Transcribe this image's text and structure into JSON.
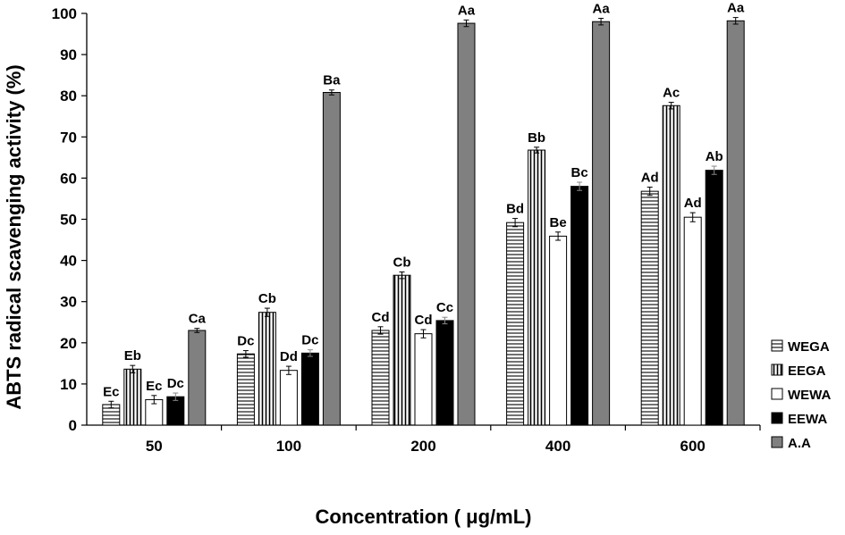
{
  "chart_data": {
    "type": "bar",
    "xlabel": "Concentration ( μg/mL)",
    "ylabel": "ABTS radical scavenging activity (%)",
    "ylim": [
      0,
      100
    ],
    "yticks": [
      0,
      10,
      20,
      30,
      40,
      50,
      60,
      70,
      80,
      90,
      100
    ],
    "categories": [
      "50",
      "100",
      "200",
      "400",
      "600"
    ],
    "legend_position": "right-bottom",
    "series": [
      {
        "name": "WEGA",
        "pattern": "horizontal-stripes",
        "color": "#000000",
        "values": [
          5.0,
          17.3,
          23.0,
          49.2,
          56.8
        ],
        "errors": [
          0.8,
          0.8,
          0.9,
          1.0,
          1.0
        ],
        "labels": [
          "Ec",
          "Dc",
          "Cd",
          "Bd",
          "Ad"
        ]
      },
      {
        "name": "EEGA",
        "pattern": "vertical-stripes",
        "color": "#000000",
        "values": [
          13.6,
          27.4,
          36.4,
          66.8,
          77.6
        ],
        "errors": [
          0.9,
          1.0,
          0.8,
          0.7,
          0.8
        ],
        "labels": [
          "Eb",
          "Cb",
          "Cb",
          "Bb",
          "Ac"
        ]
      },
      {
        "name": "WEWA",
        "pattern": "white",
        "color": "#ffffff",
        "values": [
          6.2,
          13.3,
          22.2,
          45.9,
          50.5
        ],
        "errors": [
          1.0,
          1.0,
          1.0,
          1.0,
          1.1
        ],
        "labels": [
          "Ec",
          "Dd",
          "Cd",
          "Be",
          "Ad"
        ]
      },
      {
        "name": "EEWA",
        "pattern": "black",
        "color": "#000000",
        "values": [
          6.9,
          17.5,
          25.4,
          58.0,
          61.9
        ],
        "errors": [
          0.9,
          0.8,
          0.8,
          1.0,
          1.0
        ],
        "labels": [
          "Dc",
          "Dc",
          "Cc",
          "Bc",
          "Ab"
        ]
      },
      {
        "name": "A.A",
        "pattern": "gray",
        "color": "#808080",
        "values": [
          23.0,
          80.8,
          97.6,
          98.0,
          98.2
        ],
        "errors": [
          0.5,
          0.6,
          0.8,
          0.8,
          0.8
        ],
        "labels": [
          "Ca",
          "Ba",
          "Aa",
          "Aa",
          "Aa"
        ]
      }
    ]
  }
}
